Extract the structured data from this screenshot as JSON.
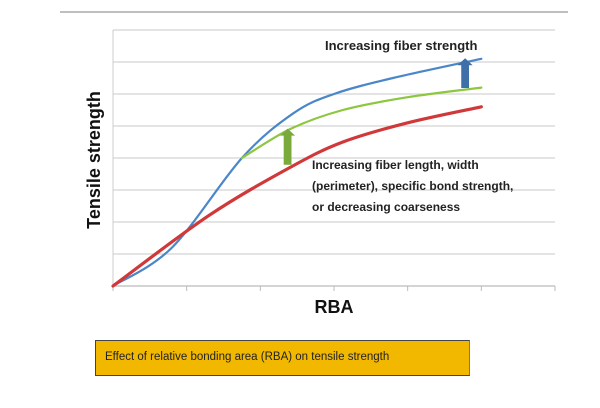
{
  "chart_data": {
    "type": "line",
    "xlabel": "RBA",
    "ylabel": "Tensile strength",
    "xlim": [
      0,
      6
    ],
    "ylim": [
      0,
      8
    ],
    "grid": "horizontal",
    "tick_labels": "none",
    "series": [
      {
        "color": "#4A86C8",
        "points": [
          [
            0,
            0
          ],
          [
            0.8,
            1.2
          ],
          [
            1.75,
            4.0
          ],
          [
            2.45,
            5.4
          ],
          [
            3.0,
            6.0
          ],
          [
            3.8,
            6.5
          ],
          [
            5.0,
            7.1
          ]
        ]
      },
      {
        "color": "#8DC63F",
        "points": [
          [
            1.75,
            4.0
          ],
          [
            2.4,
            4.9
          ],
          [
            3.12,
            5.5
          ],
          [
            4.0,
            5.9
          ],
          [
            5.0,
            6.2
          ]
        ]
      },
      {
        "color": "#D0383A",
        "points": [
          [
            0,
            0
          ],
          [
            1.3,
            2.2
          ],
          [
            2.4,
            3.7
          ],
          [
            3.12,
            4.5
          ],
          [
            4.0,
            5.1
          ],
          [
            5.0,
            5.6
          ]
        ]
      }
    ],
    "arrows": [
      {
        "color": "#7AA93C",
        "x": 2.37,
        "from": 3.8,
        "to": 4.9
      },
      {
        "color": "#3F6FA8",
        "x": 4.78,
        "from": 6.2,
        "to": 7.1
      }
    ],
    "annotations": [
      {
        "text": "Increasing fiber strength"
      },
      {
        "lines": [
          "Increasing fiber length, width",
          "(perimeter), specific bond strength,",
          "or decreasing coarseness"
        ]
      }
    ]
  },
  "caption": "Effect of relative bonding area (RBA) on tensile strength"
}
